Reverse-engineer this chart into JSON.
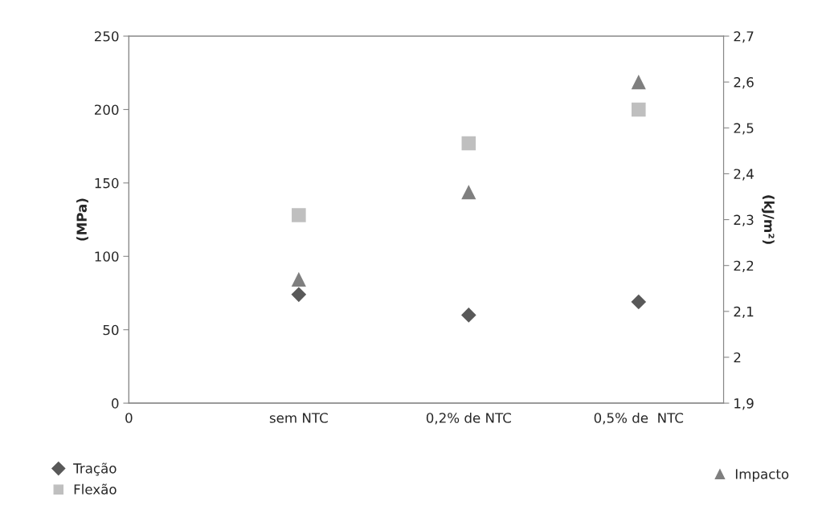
{
  "chart_data": {
    "type": "scatter",
    "ylabel": "(MPa)",
    "y2label": "(kJ/m²)",
    "categories": [
      "0",
      "sem NTC",
      "0,2% de NTC",
      "0,5% de  NTC"
    ],
    "ylim": [
      0,
      250
    ],
    "yticks": [
      0,
      50,
      100,
      150,
      200,
      250
    ],
    "y2lim": [
      1.9,
      2.7
    ],
    "y2ticks": [
      {
        "value": 1.9,
        "label": "1,9"
      },
      2,
      {
        "value": 2.1,
        "label": "2,1"
      },
      {
        "value": 2.2,
        "label": "2,2"
      },
      {
        "value": 2.3,
        "label": "2,3"
      },
      {
        "value": 2.4,
        "label": "2,4"
      },
      {
        "value": 2.5,
        "label": "2,5"
      },
      {
        "value": 2.6,
        "label": "2,6"
      },
      {
        "value": 2.7,
        "label": "2,7"
      }
    ],
    "series": [
      {
        "name": "Tração",
        "color": "#595959",
        "marker": "diamond",
        "values": [
          null,
          74,
          60,
          69
        ]
      },
      {
        "name": "Flexão",
        "color": "#bfbfbf",
        "marker": "square",
        "values": [
          null,
          128,
          177,
          200
        ]
      },
      {
        "name": "Impacto",
        "color": "#7f7f7f",
        "marker": "triangle",
        "axis": "y2",
        "values": [
          null,
          2.17,
          2.36,
          2.6
        ]
      }
    ],
    "grid": false,
    "legend": "bottom"
  }
}
